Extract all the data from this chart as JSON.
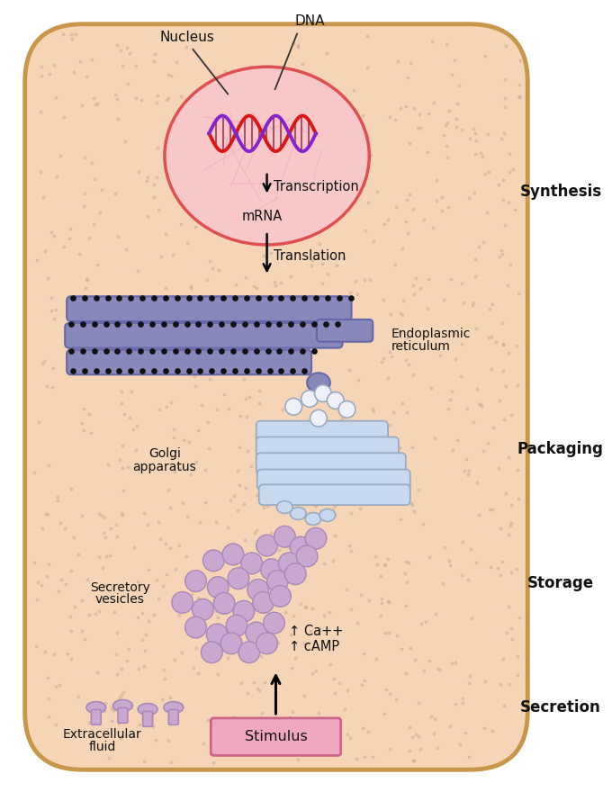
{
  "cell_bg": "#f5d5b5",
  "cell_border": "#c8964a",
  "nucleus_fill": "#f8c8c8",
  "nucleus_border": "#e05050",
  "er_color": "#8888bb",
  "er_edge": "#6666aa",
  "golgi_color": "#c8d8ee",
  "golgi_edge": "#9aaac0",
  "vesicle_fill": "#c8a8d0",
  "vesicle_edge": "#a888b8",
  "dot_color": "#c8a898",
  "text_color": "#111111",
  "stimulus_bg": "#f0a8c0",
  "stimulus_border": "#cc6688",
  "labels": {
    "nucleus": "Nucleus",
    "dna": "DNA",
    "transcription": "Transcription",
    "mrna": "mRNA",
    "translation": "Translation",
    "er": [
      "Endoplasmic",
      "reticulum"
    ],
    "golgi": [
      "Golgi",
      "apparatus"
    ],
    "secretory": [
      "Secretory",
      "vesicles"
    ],
    "ca": "↑ Ca++",
    "camp": "↑ cAMP",
    "extracellular": [
      "Extracellular",
      "fluid"
    ],
    "stimulus": "Stimulus",
    "synthesis": "Synthesis",
    "packaging": "Packaging",
    "storage": "Storage",
    "secretion": "Secretion"
  }
}
